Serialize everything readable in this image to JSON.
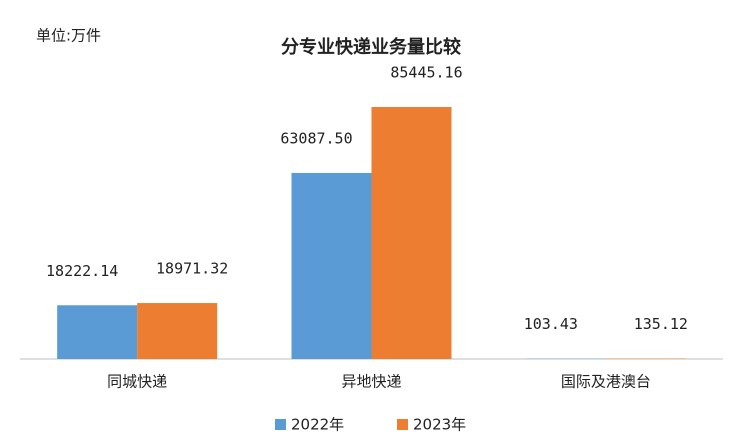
{
  "chart_data": {
    "type": "bar",
    "title": "分专业快递业务量比较",
    "unit": "单位:万件",
    "categories": [
      "同城快递",
      "异地快递",
      "国际及港澳台"
    ],
    "series": [
      {
        "name": "2022年",
        "color": "#5b9bd5",
        "values": [
          18222.14,
          63087.5,
          103.43
        ],
        "value_labels": [
          "18222.14",
          "63087.50",
          "103.43"
        ]
      },
      {
        "name": "2023年",
        "color": "#ed7d31",
        "values": [
          18971.32,
          85445.16,
          135.12
        ],
        "value_labels": [
          "18971.32",
          "85445.16",
          "135.12"
        ]
      }
    ]
  }
}
